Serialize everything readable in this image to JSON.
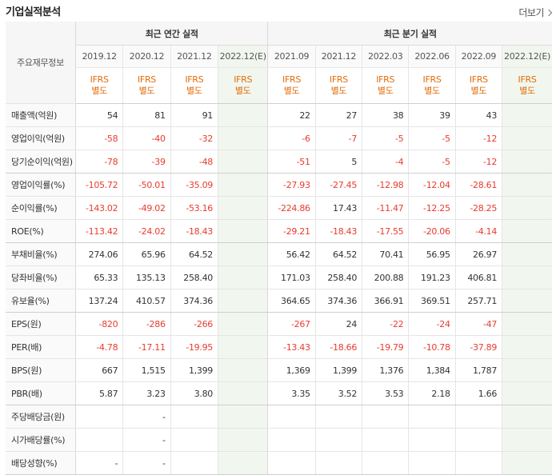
{
  "header": {
    "title": "기업실적분석",
    "more_label": "더보기"
  },
  "table": {
    "corner_label": "주요재무정보",
    "annual_group": "최근 연간 실적",
    "quarter_group": "최근 분기 실적",
    "annual_periods": [
      "2019.12",
      "2020.12",
      "2021.12",
      "2022.12(E)"
    ],
    "quarter_periods": [
      "2021.09",
      "2021.12",
      "2022.03",
      "2022.06",
      "2022.09",
      "2022.12(E)"
    ],
    "ifrs_label": "IFRS",
    "basis_label": "별도",
    "rows": [
      {
        "label": "매출액(억원)",
        "values": [
          "54",
          "81",
          "91",
          "",
          "22",
          "27",
          "38",
          "39",
          "43",
          ""
        ]
      },
      {
        "label": "영업이익(억원)",
        "values": [
          "-58",
          "-40",
          "-32",
          "",
          "-6",
          "-7",
          "-5",
          "-5",
          "-12",
          ""
        ]
      },
      {
        "label": "당기순이익(억원)",
        "values": [
          "-78",
          "-39",
          "-48",
          "",
          "-51",
          "5",
          "-4",
          "-5",
          "-12",
          ""
        ]
      },
      {
        "label": "영업이익률(%)",
        "values": [
          "-105.72",
          "-50.01",
          "-35.09",
          "",
          "-27.93",
          "-27.45",
          "-12.98",
          "-12.04",
          "-28.61",
          ""
        ]
      },
      {
        "label": "순이익률(%)",
        "values": [
          "-143.02",
          "-49.02",
          "-53.16",
          "",
          "-224.86",
          "17.43",
          "-11.47",
          "-12.25",
          "-28.25",
          ""
        ]
      },
      {
        "label": "ROE(%)",
        "values": [
          "-113.42",
          "-24.02",
          "-18.43",
          "",
          "-29.21",
          "-18.43",
          "-17.55",
          "-20.06",
          "-4.14",
          ""
        ]
      },
      {
        "label": "부채비율(%)",
        "values": [
          "274.06",
          "65.96",
          "64.52",
          "",
          "56.42",
          "64.52",
          "70.41",
          "56.95",
          "26.97",
          ""
        ]
      },
      {
        "label": "당좌비율(%)",
        "values": [
          "65.33",
          "135.13",
          "258.40",
          "",
          "171.03",
          "258.40",
          "200.88",
          "191.23",
          "406.81",
          ""
        ]
      },
      {
        "label": "유보율(%)",
        "values": [
          "137.24",
          "410.57",
          "374.36",
          "",
          "364.65",
          "374.36",
          "366.91",
          "369.51",
          "257.71",
          ""
        ]
      },
      {
        "label": "EPS(원)",
        "values": [
          "-820",
          "-286",
          "-266",
          "",
          "-267",
          "24",
          "-22",
          "-24",
          "-47",
          ""
        ]
      },
      {
        "label": "PER(배)",
        "values": [
          "-4.78",
          "-17.11",
          "-19.95",
          "",
          "-13.43",
          "-18.66",
          "-19.79",
          "-10.78",
          "-37.89",
          ""
        ]
      },
      {
        "label": "BPS(원)",
        "values": [
          "667",
          "1,515",
          "1,399",
          "",
          "1,369",
          "1,399",
          "1,376",
          "1,384",
          "1,787",
          ""
        ]
      },
      {
        "label": "PBR(배)",
        "values": [
          "5.87",
          "3.23",
          "3.80",
          "",
          "3.35",
          "3.52",
          "3.53",
          "2.18",
          "1.66",
          ""
        ]
      },
      {
        "label": "주당배당금(원)",
        "values": [
          "",
          "-",
          "",
          "",
          "",
          "",
          "",
          "",
          "",
          ""
        ]
      },
      {
        "label": "시가배당률(%)",
        "values": [
          "",
          "-",
          "",
          "",
          "",
          "",
          "",
          "",
          "",
          ""
        ]
      },
      {
        "label": "배당성향(%)",
        "values": [
          "-",
          "-",
          "",
          "",
          "",
          "",
          "",
          "",
          "",
          ""
        ]
      }
    ]
  },
  "colors": {
    "negative": "#e83b2e",
    "ifrs_label": "#e36c0a",
    "estimate_bg": "#f1f7ee"
  }
}
